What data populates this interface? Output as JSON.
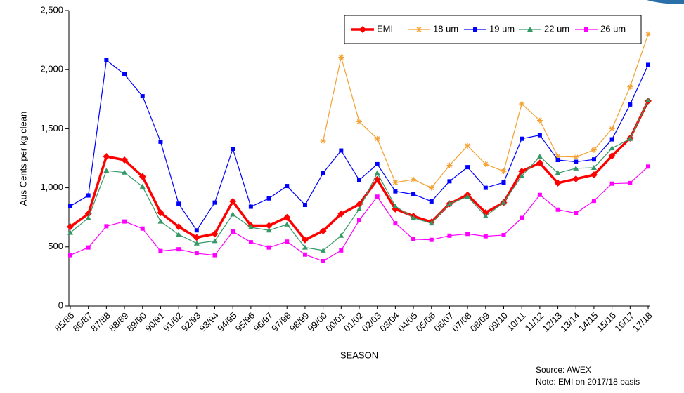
{
  "chart_data": {
    "type": "line",
    "ylabel": "Aus Cents per kg clean",
    "xlabel": "SEASON",
    "annotations": [
      "Source: AWEX",
      "Note: EMI on 2017/18 basis"
    ],
    "categories": [
      "85/86",
      "86/87",
      "87/88",
      "88/89",
      "89/90",
      "90/91",
      "91/92",
      "92/93",
      "93/94",
      "94/95",
      "95/96",
      "96/97",
      "97/98",
      "98/99",
      "99/00",
      "00/01",
      "01/02",
      "02/03",
      "03/04",
      "04/05",
      "05/06",
      "06/07",
      "07/08",
      "08/09",
      "09/10",
      "10/11",
      "11/12",
      "12/13",
      "13/14",
      "14/15",
      "15/16",
      "16/17",
      "17/18"
    ],
    "ylim": [
      0,
      2500
    ],
    "yticks": [
      0,
      500,
      {
        "value": 1000,
        "label": "1,000"
      },
      {
        "value": 1500,
        "label": "1,500"
      },
      {
        "value": 2000,
        "label": "2,000"
      },
      {
        "value": 2500,
        "label": "2,500"
      }
    ],
    "legend": "top-right",
    "series": [
      {
        "name": "EMI",
        "color": "#ff0000",
        "marker": "diamond",
        "width": 3.5,
        "values": [
          670,
          780,
          1265,
          1235,
          1095,
          790,
          670,
          580,
          610,
          885,
          680,
          680,
          750,
          560,
          635,
          780,
          860,
          1070,
          820,
          760,
          710,
          865,
          940,
          790,
          875,
          1140,
          1210,
          1040,
          1075,
          1110,
          1270,
          1420,
          1735
        ]
      },
      {
        "name": "18 um",
        "color": "#f5a030",
        "marker": "star",
        "width": 1.2,
        "values": [
          null,
          null,
          null,
          null,
          null,
          null,
          null,
          null,
          null,
          null,
          null,
          null,
          null,
          null,
          1395,
          2105,
          1560,
          1415,
          1045,
          1070,
          1000,
          1190,
          1355,
          1200,
          1140,
          1710,
          1570,
          1265,
          1260,
          1320,
          1500,
          1855,
          2300
        ]
      },
      {
        "name": "19 um",
        "color": "#0000ff",
        "marker": "square",
        "width": 1.2,
        "values": [
          845,
          935,
          2080,
          1960,
          1775,
          1390,
          865,
          640,
          875,
          1330,
          840,
          910,
          1015,
          855,
          1125,
          1315,
          1065,
          1200,
          970,
          945,
          885,
          1055,
          1175,
          1000,
          1045,
          1415,
          1445,
          1235,
          1220,
          1240,
          1410,
          1705,
          2040
        ]
      },
      {
        "name": "22 um",
        "color": "#339966",
        "marker": "triangle",
        "width": 1.2,
        "values": [
          620,
          745,
          1145,
          1130,
          1010,
          715,
          605,
          530,
          550,
          775,
          665,
          640,
          690,
          495,
          470,
          595,
          820,
          1125,
          845,
          745,
          700,
          865,
          925,
          760,
          875,
          1100,
          1265,
          1125,
          1165,
          1170,
          1335,
          1415,
          1740
        ]
      },
      {
        "name": "26 um",
        "color": "#ff00ff",
        "marker": "square",
        "width": 1.2,
        "values": [
          430,
          495,
          675,
          715,
          655,
          465,
          480,
          445,
          430,
          630,
          540,
          495,
          545,
          435,
          380,
          470,
          725,
          925,
          700,
          565,
          560,
          595,
          610,
          590,
          600,
          745,
          940,
          815,
          785,
          890,
          1035,
          1040,
          1180
        ]
      }
    ]
  }
}
